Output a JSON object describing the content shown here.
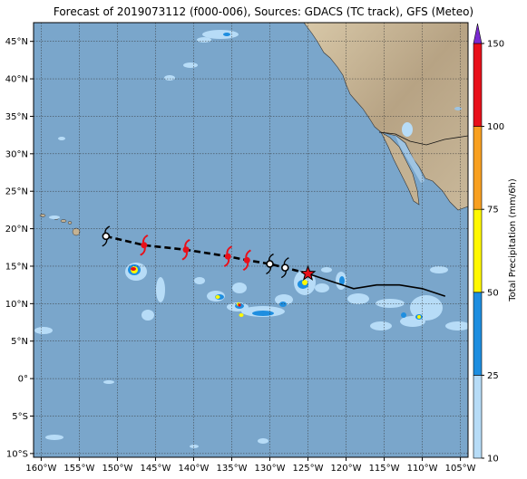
{
  "title": "Forecast of 2019073112 (f000-006), Sources: GDACS (TC track), GFS (Meteo)",
  "map": {
    "lon_range": [
      -161,
      -104
    ],
    "lat_range": [
      -10.5,
      47.5
    ],
    "lon_ticks": [
      "160°W",
      "155°W",
      "150°W",
      "145°W",
      "140°W",
      "135°W",
      "130°W",
      "125°W",
      "120°W",
      "115°W",
      "110°W",
      "105°W"
    ],
    "lat_ticks": [
      "10°S",
      "5°S",
      "0°",
      "5°N",
      "10°N",
      "15°N",
      "20°N",
      "25°N",
      "30°N",
      "35°N",
      "40°N",
      "45°N"
    ],
    "lon_tick_values": [
      -160,
      -155,
      -150,
      -145,
      -140,
      -135,
      -130,
      -125,
      -120,
      -115,
      -110,
      -105
    ],
    "lat_tick_values": [
      -10,
      -5,
      0,
      5,
      10,
      15,
      20,
      25,
      30,
      35,
      40,
      45
    ],
    "grid": true,
    "ocean_color": "#7aa6cb",
    "land_color": "#c9b79a"
  },
  "track": {
    "past": [
      [
        -107,
        11
      ],
      [
        -110,
        12
      ],
      [
        -113,
        12.5
      ],
      [
        -116,
        12.5
      ],
      [
        -119,
        12
      ],
      [
        -122,
        13
      ],
      [
        -125,
        14
      ]
    ],
    "forecast": [
      [
        -125,
        14
      ],
      [
        -128,
        14.8
      ],
      [
        -130,
        15.3
      ],
      [
        -133,
        15.8
      ],
      [
        -135.5,
        16.3
      ],
      [
        -141,
        17.2
      ],
      [
        -146.5,
        17.8
      ],
      [
        -151.5,
        19
      ]
    ],
    "current_position": [
      -125,
      14
    ],
    "symbols": [
      {
        "lon": -128,
        "lat": 14.8,
        "color": "#000000",
        "kind": "storm"
      },
      {
        "lon": -130,
        "lat": 15.3,
        "color": "#000000",
        "kind": "storm"
      },
      {
        "lon": -133,
        "lat": 15.8,
        "color": "#e8101a",
        "kind": "hurricane"
      },
      {
        "lon": -135.5,
        "lat": 16.3,
        "color": "#e8101a",
        "kind": "hurricane"
      },
      {
        "lon": -141,
        "lat": 17.2,
        "color": "#e8101a",
        "kind": "hurricane"
      },
      {
        "lon": -146.5,
        "lat": 17.8,
        "color": "#e8101a",
        "kind": "hurricane"
      },
      {
        "lon": -151.5,
        "lat": 19.0,
        "color": "#000000",
        "kind": "storm"
      }
    ]
  },
  "colorbar": {
    "label": "Total Precipitation (mm/6h)",
    "ticks": [
      "10",
      "25",
      "50",
      "75",
      "100",
      "150"
    ],
    "levels": [
      {
        "from": "10",
        "to": "25",
        "color": "#b7dcf7"
      },
      {
        "from": "25",
        "to": "50",
        "color": "#1e8ee0"
      },
      {
        "from": "50",
        "to": "75",
        "color": "#fff800"
      },
      {
        "from": "75",
        "to": "100",
        "color": "#f8a020"
      },
      {
        "from": "100",
        "to": "150",
        "color": "#e8101a"
      }
    ],
    "extend_color": "#7a2ad0"
  }
}
